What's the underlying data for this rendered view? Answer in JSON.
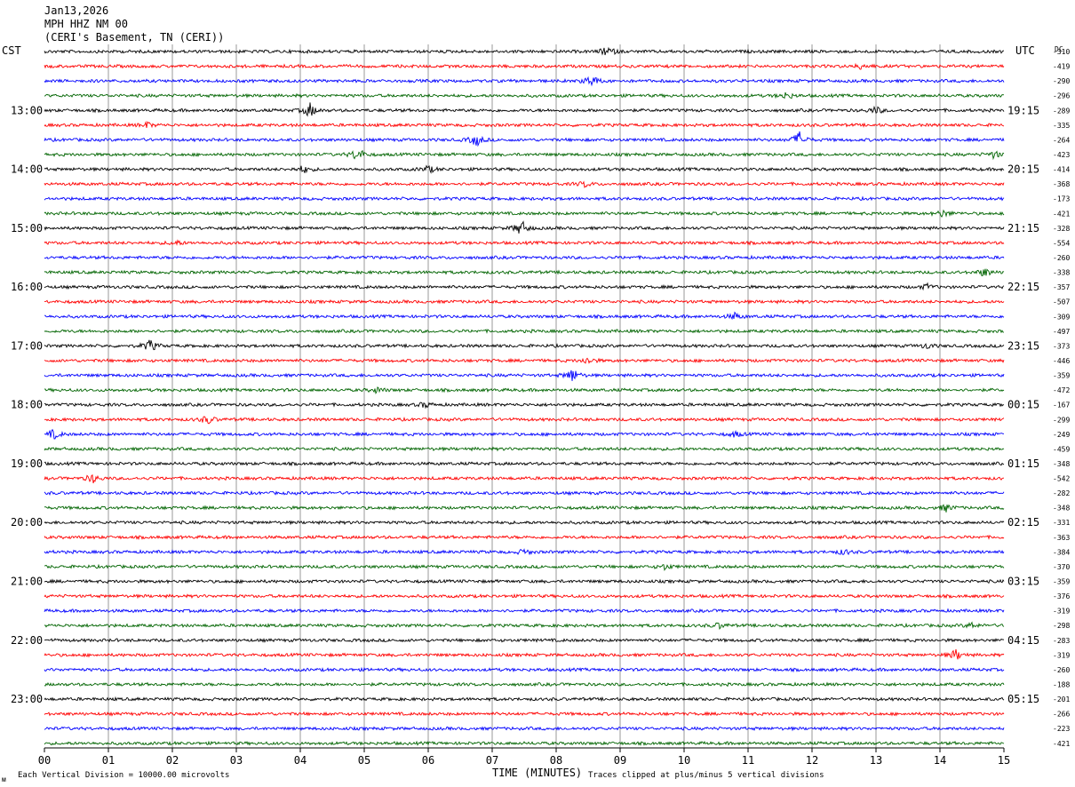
{
  "header": {
    "date": "Jan13,2026",
    "station": "MPH HHZ NM 00",
    "location": "(CERI's Basement, TN (CERI))"
  },
  "left_label": "CST",
  "right_label": "UTC",
  "dc_label": "DC",
  "footer": {
    "scale_note": "Each Vertical Division = 10000.00 microvolts",
    "xlabel": "TIME (MINUTES)",
    "clip_note": "Traces clipped at plus/minus 5 vertical divisions",
    "corner_mark": "ᴍ"
  },
  "colors": {
    "trace_cycle": [
      "#000000",
      "#ff0000",
      "#0000ff",
      "#006400"
    ],
    "gridline": "#9a9a9a"
  },
  "chart_data": {
    "type": "line",
    "title": "",
    "xlabel": "TIME (MINUTES)",
    "ylabel": "",
    "xlim": [
      0,
      15
    ],
    "x_ticks": [
      "00",
      "01",
      "02",
      "03",
      "04",
      "05",
      "06",
      "07",
      "08",
      "09",
      "10",
      "11",
      "12",
      "13",
      "14",
      "15"
    ],
    "grid": true,
    "row_count": 48,
    "left_time_labels": [
      {
        "row": 4,
        "label": "13:00"
      },
      {
        "row": 8,
        "label": "14:00"
      },
      {
        "row": 12,
        "label": "15:00"
      },
      {
        "row": 16,
        "label": "16:00"
      },
      {
        "row": 20,
        "label": "17:00"
      },
      {
        "row": 24,
        "label": "18:00"
      },
      {
        "row": 28,
        "label": "19:00"
      },
      {
        "row": 32,
        "label": "20:00"
      },
      {
        "row": 36,
        "label": "21:00"
      },
      {
        "row": 40,
        "label": "22:00"
      },
      {
        "row": 44,
        "label": "23:00"
      }
    ],
    "right_time_labels": [
      {
        "row": 4,
        "label": "19:15"
      },
      {
        "row": 8,
        "label": "20:15"
      },
      {
        "row": 12,
        "label": "21:15"
      },
      {
        "row": 16,
        "label": "22:15"
      },
      {
        "row": 20,
        "label": "23:15"
      },
      {
        "row": 24,
        "label": "00:15"
      },
      {
        "row": 28,
        "label": "01:15"
      },
      {
        "row": 32,
        "label": "02:15"
      },
      {
        "row": 36,
        "label": "03:15"
      },
      {
        "row": 40,
        "label": "04:15"
      },
      {
        "row": 44,
        "label": "05:15"
      }
    ],
    "dc_offsets": [
      "-310",
      "-419",
      "-290",
      "-296",
      "-289",
      "-335",
      "-264",
      "-423",
      "-414",
      "-368",
      "-173",
      "-421",
      "-328",
      "-554",
      "-260",
      "-338",
      "-357",
      "-507",
      "-309",
      "-497",
      "-373",
      "-446",
      "-359",
      "-472",
      "-167",
      "-299",
      "-249",
      "-459",
      "-348",
      "-542",
      "-282",
      "-348",
      "-331",
      "-363",
      "-384",
      "-370",
      "-359",
      "-376",
      "-319",
      "-298",
      "-283",
      "-319",
      "-260",
      "-188",
      "-201",
      "-266",
      "-223",
      "-421"
    ],
    "events": [
      {
        "row": 0,
        "minute": 8.8,
        "amp": 6
      },
      {
        "row": 1,
        "minute": 12.8,
        "amp": 4
      },
      {
        "row": 2,
        "minute": 8.55,
        "amp": 7
      },
      {
        "row": 3,
        "minute": 11.6,
        "amp": 4
      },
      {
        "row": 4,
        "minute": 4.15,
        "amp": 8
      },
      {
        "row": 4,
        "minute": 13.0,
        "amp": 4
      },
      {
        "row": 5,
        "minute": 1.6,
        "amp": 3
      },
      {
        "row": 6,
        "minute": 6.75,
        "amp": 7
      },
      {
        "row": 6,
        "minute": 11.8,
        "amp": 9
      },
      {
        "row": 7,
        "minute": 4.9,
        "amp": 8
      },
      {
        "row": 7,
        "minute": 14.85,
        "amp": 4
      },
      {
        "row": 8,
        "minute": 4.05,
        "amp": 4
      },
      {
        "row": 8,
        "minute": 6.0,
        "amp": 4
      },
      {
        "row": 9,
        "minute": 8.45,
        "amp": 3
      },
      {
        "row": 11,
        "minute": 14.05,
        "amp": 4
      },
      {
        "row": 12,
        "minute": 7.45,
        "amp": 9
      },
      {
        "row": 13,
        "minute": 2.05,
        "amp": 3
      },
      {
        "row": 15,
        "minute": 14.7,
        "amp": 5
      },
      {
        "row": 16,
        "minute": 13.8,
        "amp": 3
      },
      {
        "row": 18,
        "minute": 10.8,
        "amp": 4
      },
      {
        "row": 20,
        "minute": 1.65,
        "amp": 7
      },
      {
        "row": 20,
        "minute": 13.8,
        "amp": 3
      },
      {
        "row": 21,
        "minute": 8.5,
        "amp": 4
      },
      {
        "row": 22,
        "minute": 8.25,
        "amp": 8
      },
      {
        "row": 23,
        "minute": 5.2,
        "amp": 3
      },
      {
        "row": 24,
        "minute": 5.95,
        "amp": 3
      },
      {
        "row": 25,
        "minute": 2.55,
        "amp": 5
      },
      {
        "row": 26,
        "minute": 0.15,
        "amp": 5
      },
      {
        "row": 26,
        "minute": 10.8,
        "amp": 3
      },
      {
        "row": 29,
        "minute": 0.75,
        "amp": 5
      },
      {
        "row": 31,
        "minute": 14.1,
        "amp": 4
      },
      {
        "row": 34,
        "minute": 7.5,
        "amp": 3
      },
      {
        "row": 34,
        "minute": 12.5,
        "amp": 3
      },
      {
        "row": 35,
        "minute": 9.7,
        "amp": 3
      },
      {
        "row": 39,
        "minute": 10.55,
        "amp": 3
      },
      {
        "row": 39,
        "minute": 14.5,
        "amp": 3
      },
      {
        "row": 41,
        "minute": 14.25,
        "amp": 6
      }
    ]
  }
}
